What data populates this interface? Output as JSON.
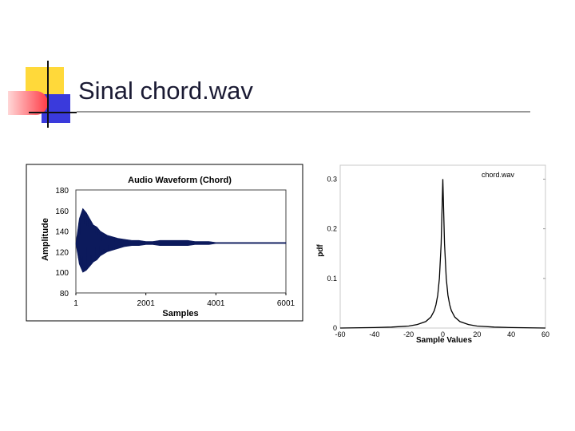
{
  "slide": {
    "title": "Sinal chord.wav",
    "colors": {
      "yellow": "#ffd93a",
      "red": "#ff3b46",
      "blue": "#3a3adc",
      "rule": "#999999"
    }
  },
  "chart_data": [
    {
      "type": "line",
      "title": "Audio Waveform (Chord)",
      "xlabel": "Samples",
      "ylabel": "Amplitude",
      "xlim": [
        1,
        6001
      ],
      "ylim": [
        80,
        180
      ],
      "xticks": [
        "1",
        "2001",
        "4001",
        "6001"
      ],
      "yticks": [
        "180",
        "160",
        "140",
        "120",
        "100",
        "80"
      ],
      "series": [
        {
          "values_x": [
            1,
            100,
            200,
            300,
            400,
            500,
            600,
            700,
            800,
            900,
            1000,
            1200,
            1400,
            1600,
            1800,
            2000,
            2200,
            2400,
            2600,
            2800,
            3000,
            3200,
            3400,
            3600,
            3800,
            4000,
            4400,
            4800,
            5200,
            5600,
            6000,
            6001
          ],
          "upper": [
            128,
            152,
            162,
            158,
            152,
            146,
            144,
            140,
            138,
            136,
            135,
            133,
            132,
            131,
            131,
            130,
            130,
            131,
            131,
            131,
            131,
            131,
            130,
            130,
            130,
            129,
            129,
            129,
            129,
            129,
            129,
            129
          ],
          "lower": [
            128,
            108,
            100,
            102,
            106,
            110,
            112,
            116,
            118,
            120,
            121,
            123,
            125,
            126,
            126,
            127,
            127,
            126,
            126,
            126,
            126,
            126,
            127,
            127,
            127,
            128,
            128,
            128,
            128,
            128,
            128,
            128
          ],
          "color": "#0c1a5c"
        }
      ],
      "grid": false,
      "legend": "none"
    },
    {
      "type": "line",
      "title": "",
      "xlabel": "Sample Values",
      "ylabel": "pdf",
      "xlim": [
        -60,
        60
      ],
      "ylim": [
        0,
        0.32
      ],
      "xticks": [
        "-60",
        "-40",
        "-20",
        "0",
        "20",
        "40",
        "60"
      ],
      "yticks": [
        "0.3",
        "0.2",
        "0.1",
        "0"
      ],
      "series": [
        {
          "name": "chord.wav",
          "x": [
            -60,
            -40,
            -30,
            -20,
            -15,
            -10,
            -7,
            -5,
            -4,
            -3,
            -2,
            -1,
            0,
            1,
            2,
            3,
            4,
            5,
            7,
            10,
            15,
            20,
            30,
            40,
            60
          ],
          "y": [
            0,
            0.001,
            0.002,
            0.004,
            0.007,
            0.013,
            0.022,
            0.035,
            0.047,
            0.066,
            0.1,
            0.17,
            0.3,
            0.17,
            0.1,
            0.066,
            0.047,
            0.035,
            0.022,
            0.013,
            0.007,
            0.004,
            0.002,
            0.001,
            0
          ],
          "color": "#000000"
        }
      ],
      "grid": false,
      "legend": "top-right"
    }
  ]
}
